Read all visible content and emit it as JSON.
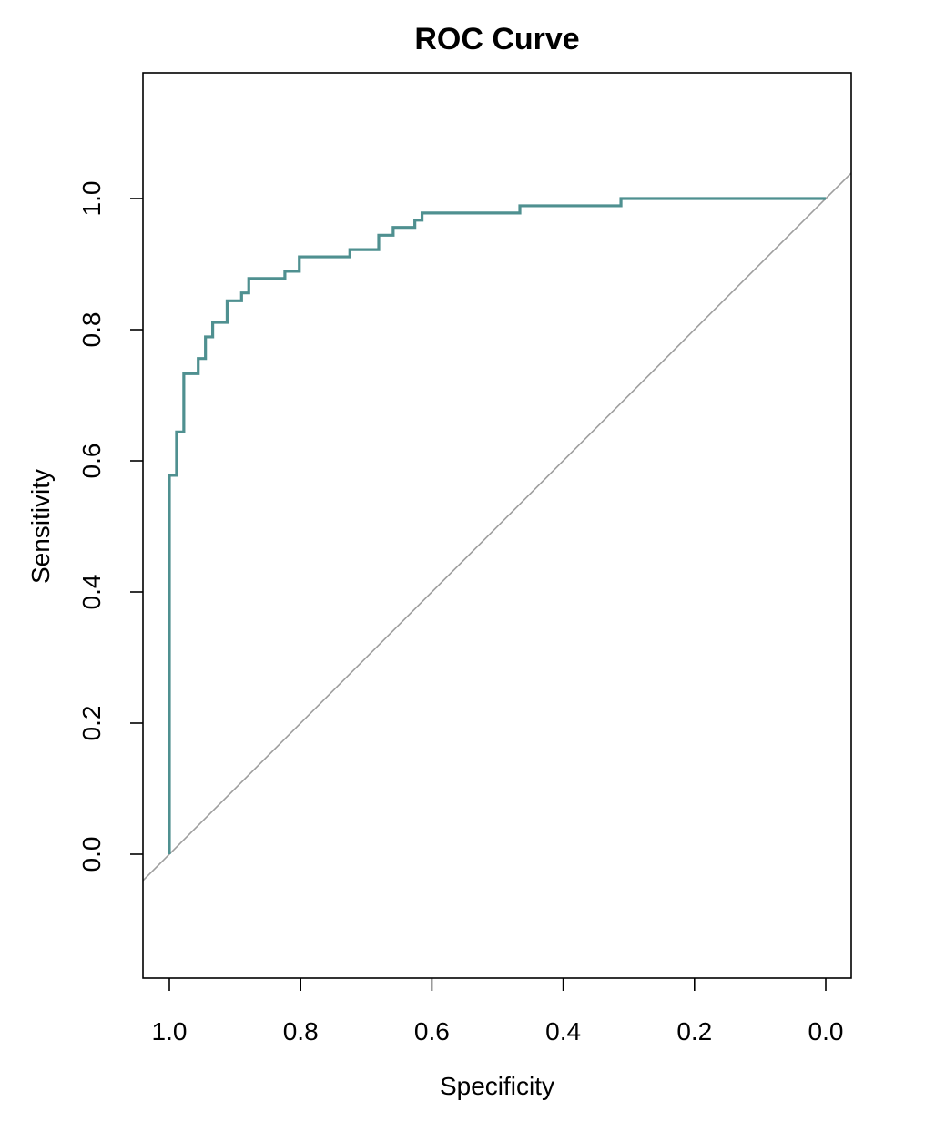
{
  "chart_data": {
    "type": "line",
    "title": "ROC Curve",
    "xlabel": "Specificity",
    "ylabel": "Sensitivity",
    "xlim": [
      1.0,
      0.0
    ],
    "x_reversed": true,
    "ylim": [
      0.0,
      1.0
    ],
    "grid": false,
    "legend": "none",
    "x_ticks": [
      1.0,
      0.8,
      0.6,
      0.4,
      0.2,
      0.0
    ],
    "x_tick_labels": [
      "1.0",
      "0.8",
      "0.6",
      "0.4",
      "0.2",
      "0.0"
    ],
    "y_ticks": [
      0.0,
      0.2,
      0.4,
      0.6,
      0.8,
      1.0
    ],
    "y_tick_labels": [
      "0.0",
      "0.2",
      "0.4",
      "0.6",
      "0.8",
      "1.0"
    ],
    "series": [
      {
        "color": "#4f9090",
        "x": [
          1.0,
          1.0,
          0.989,
          0.989,
          0.978,
          0.978,
          0.956,
          0.956,
          0.945,
          0.945,
          0.934,
          0.934,
          0.912,
          0.912,
          0.89,
          0.89,
          0.879,
          0.879,
          0.824,
          0.824,
          0.802,
          0.802,
          0.725,
          0.725,
          0.681,
          0.681,
          0.659,
          0.659,
          0.626,
          0.626,
          0.615,
          0.615,
          0.466,
          0.466,
          0.312,
          0.312,
          0.0
        ],
        "y": [
          0.0,
          0.578,
          0.578,
          0.644,
          0.644,
          0.733,
          0.733,
          0.756,
          0.756,
          0.789,
          0.789,
          0.811,
          0.811,
          0.844,
          0.844,
          0.856,
          0.856,
          0.878,
          0.878,
          0.889,
          0.889,
          0.911,
          0.911,
          0.922,
          0.922,
          0.944,
          0.944,
          0.956,
          0.956,
          0.967,
          0.967,
          0.978,
          0.978,
          0.989,
          0.989,
          1.0,
          1.0
        ]
      }
    ],
    "reference_line": {
      "description_x": [
        1.0,
        0.0
      ],
      "y": [
        0.0,
        1.0
      ],
      "color": "#9e9e9e"
    }
  }
}
